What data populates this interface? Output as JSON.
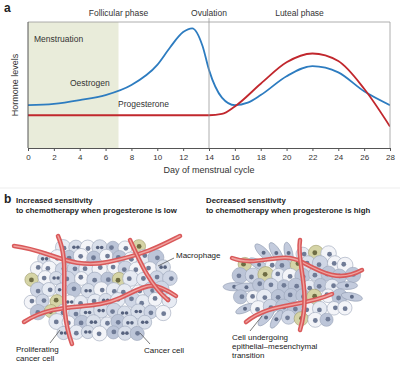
{
  "chart_data": {
    "type": "line",
    "panel_label": "a",
    "xlabel": "Day of menstrual cycle",
    "ylabel": "Hormone levels",
    "xlim": [
      0,
      28
    ],
    "ylim": [
      0,
      100
    ],
    "xticks": [
      0,
      2,
      4,
      6,
      8,
      10,
      12,
      14,
      16,
      18,
      20,
      22,
      24,
      26,
      28
    ],
    "tick_labels": "x",
    "shaded": {
      "label": "Menstruation",
      "x": [
        0,
        7
      ],
      "color": "#e9ecda"
    },
    "phases": [
      {
        "label": "Follicular phase",
        "x": [
          0,
          14
        ]
      },
      {
        "label": "Ovulation",
        "x": 14
      },
      {
        "label": "Luteal phase",
        "x": [
          14,
          28
        ]
      }
    ],
    "series": [
      {
        "name": "Oestrogen",
        "color": "#2d7cc0",
        "x": [
          0,
          2,
          4,
          6,
          8,
          10,
          11,
          12,
          12.7,
          13.5,
          14,
          15,
          16,
          17,
          18,
          20,
          22,
          24,
          26,
          28
        ],
        "values": [
          34,
          35,
          38,
          42,
          50,
          66,
          80,
          92,
          95,
          81,
          62,
          40,
          34,
          36,
          42,
          57,
          65,
          60,
          45,
          34
        ]
      },
      {
        "name": "Progesterone",
        "color": "#c1272d",
        "x": [
          0,
          4,
          8,
          12,
          14,
          15,
          16,
          18,
          20,
          22,
          24,
          26,
          28
        ],
        "values": [
          26,
          26,
          26,
          26,
          26,
          27,
          33,
          51,
          68,
          75,
          69,
          47,
          17
        ]
      }
    ]
  },
  "panel_b": {
    "label": "b",
    "left": {
      "title": [
        "Increased sensitivity",
        "to chemotherapy when progesterone is low"
      ],
      "labels": {
        "macrophage": "Macrophage",
        "cancer_cell": "Cancer cell",
        "proliferating": [
          "Proliferating",
          "cancer cell"
        ]
      }
    },
    "right": {
      "title": [
        "Decreased sensitivity",
        "to chemotherapy when progesterone is high"
      ],
      "labels": {
        "emt": [
          "Cell undergoing",
          "epithelial–mesenchymal",
          "transition"
        ]
      }
    }
  }
}
